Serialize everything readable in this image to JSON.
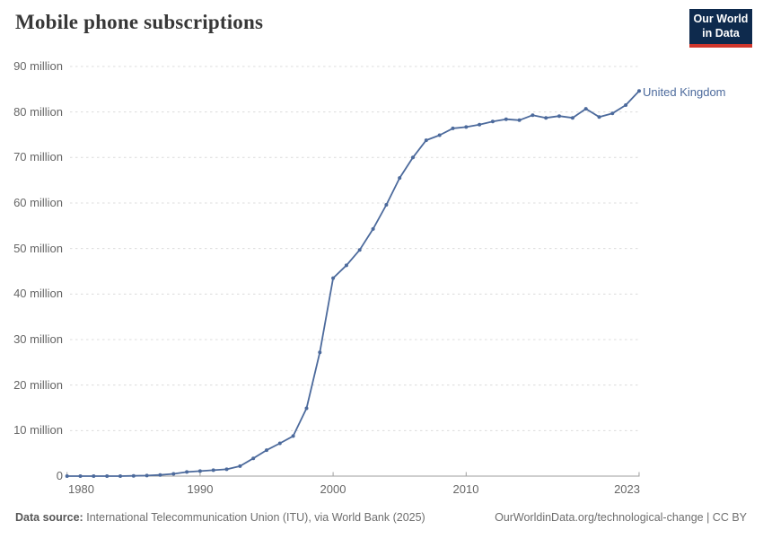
{
  "header": {
    "title": "Mobile phone subscriptions",
    "logo": {
      "line1": "Our World",
      "line2": "in Data"
    }
  },
  "chart_data": {
    "type": "line",
    "title": "Mobile phone subscriptions",
    "entity_label": "United Kingdom",
    "values_unit": "millions of subscriptions",
    "grid": "horizontal-dashed",
    "legend_position": "end-of-line-label",
    "color": "#4C6A9C",
    "ylim": [
      0,
      90
    ],
    "x": [
      1980,
      1981,
      1982,
      1983,
      1984,
      1985,
      1986,
      1987,
      1988,
      1989,
      1990,
      1991,
      1992,
      1993,
      1994,
      1995,
      1996,
      1997,
      1998,
      1999,
      2000,
      2001,
      2002,
      2003,
      2004,
      2005,
      2006,
      2007,
      2008,
      2009,
      2010,
      2011,
      2012,
      2013,
      2014,
      2015,
      2016,
      2017,
      2018,
      2019,
      2020,
      2021,
      2022,
      2023
    ],
    "series": [
      {
        "name": "United Kingdom",
        "values": [
          0,
          0,
          0,
          0,
          0,
          0.05,
          0.12,
          0.26,
          0.5,
          0.9,
          1.1,
          1.3,
          1.5,
          2.2,
          3.9,
          5.7,
          7.2,
          8.8,
          14.9,
          27.2,
          43.5,
          46.3,
          49.7,
          54.3,
          59.6,
          65.5,
          70.0,
          73.8,
          74.9,
          76.4,
          76.7,
          77.2,
          77.9,
          78.4,
          78.2,
          79.3,
          78.7,
          79.1,
          78.7,
          80.7,
          78.9,
          79.7,
          81.5,
          84.6
        ]
      }
    ],
    "yticks": [
      {
        "value": 90,
        "label": "90 million"
      },
      {
        "value": 80,
        "label": "80 million"
      },
      {
        "value": 70,
        "label": "70 million"
      },
      {
        "value": 60,
        "label": "60 million"
      },
      {
        "value": 50,
        "label": "50 million"
      },
      {
        "value": 40,
        "label": "40 million"
      },
      {
        "value": 30,
        "label": "30 million"
      },
      {
        "value": 20,
        "label": "20 million"
      },
      {
        "value": 10,
        "label": "10 million"
      },
      {
        "value": 0,
        "label": "0"
      }
    ],
    "xticks": [
      {
        "year": 1980,
        "label": "1980"
      },
      {
        "year": 1990,
        "label": "1990"
      },
      {
        "year": 2000,
        "label": "2000"
      },
      {
        "year": 2010,
        "label": "2010"
      },
      {
        "year": 2023,
        "label": "2023"
      }
    ]
  },
  "footer": {
    "source_label": "Data source:",
    "source": "International Telecommunication Union (ITU), via World Bank (2025)",
    "credit": "OurWorldinData.org/technological-change | CC BY"
  },
  "colors": {
    "line": "#4C6A9C",
    "logo_background": "#0E2A4D",
    "logo_accent": "#D0362C",
    "gridline": "#DCDCDC",
    "axis": "#9E9E9E",
    "tick_text": "#666666"
  }
}
